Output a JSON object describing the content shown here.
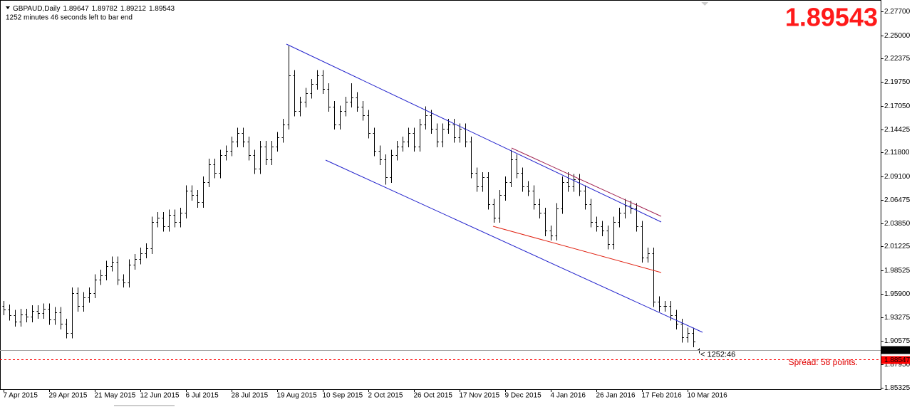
{
  "chart_data": {
    "type": "ohlc",
    "title": "GBPAUD,Daily",
    "subtitle": "1252 minutes 46 seconds left to bar end",
    "bar_timer": "< 1252:46",
    "spread_text": "Spread: 58 points.",
    "color": "#000000",
    "bid_color": "#a0a0a0",
    "ask_color": "#ff0000",
    "ask": {
      "value": 1.88547,
      "label": "1.88547"
    },
    "xlim": [
      -1.25,
      307.75
    ],
    "ylim": [
      1.8516,
      2.2898
    ],
    "xticks": [
      {
        "value": 0,
        "label": "7 Apr 2015"
      },
      {
        "value": 16,
        "label": "29 Apr 2015"
      },
      {
        "value": 32,
        "label": "21 May 2015"
      },
      {
        "value": 48,
        "label": "12 Jun 2015"
      },
      {
        "value": 64,
        "label": "6 Jul 2015"
      },
      {
        "value": 80,
        "label": "28 Jul 2015"
      },
      {
        "value": 96,
        "label": "19 Aug 2015"
      },
      {
        "value": 112,
        "label": "10 Sep 2015"
      },
      {
        "value": 128,
        "label": "2 Oct 2015"
      },
      {
        "value": 144,
        "label": "26 Oct 2015"
      },
      {
        "value": 160,
        "label": "17 Nov 2015"
      },
      {
        "value": 176,
        "label": "9 Dec 2015"
      },
      {
        "value": 192,
        "label": "4 Jan 2016"
      },
      {
        "value": 208,
        "label": "26 Jan 2016"
      },
      {
        "value": 224,
        "label": "17 Feb 2016"
      },
      {
        "value": 240,
        "label": "10 Mar 2016"
      }
    ],
    "yticks": [
      {
        "value": 2.277,
        "label": "2.27700"
      },
      {
        "value": 2.25,
        "label": "2.25000"
      },
      {
        "value": 2.22375,
        "label": "2.22375"
      },
      {
        "value": 2.1975,
        "label": "2.19750"
      },
      {
        "value": 2.1705,
        "label": "2.17050"
      },
      {
        "value": 2.14425,
        "label": "2.14425"
      },
      {
        "value": 2.118,
        "label": "2.11800"
      },
      {
        "value": 2.091,
        "label": "2.09100"
      },
      {
        "value": 2.06475,
        "label": "2.06475"
      },
      {
        "value": 2.0385,
        "label": "2.03850"
      },
      {
        "value": 2.01225,
        "label": "2.01225"
      },
      {
        "value": 1.98525,
        "label": "1.98525"
      },
      {
        "value": 1.959,
        "label": "1.95900"
      },
      {
        "value": 1.93275,
        "label": "1.93275"
      },
      {
        "value": 1.90575,
        "label": "1.90575"
      },
      {
        "value": 1.8795,
        "label": "1.87950"
      },
      {
        "value": 1.85325,
        "label": "1.85325"
      }
    ],
    "x": [
      0,
      2,
      4,
      6,
      8,
      10,
      12,
      14,
      16,
      18,
      20,
      22,
      24,
      26,
      28,
      30,
      32,
      34,
      36,
      38,
      40,
      42,
      44,
      46,
      48,
      50,
      52,
      54,
      56,
      58,
      60,
      62,
      64,
      66,
      68,
      70,
      72,
      74,
      76,
      78,
      80,
      82,
      84,
      86,
      88,
      90,
      92,
      94,
      96,
      98,
      100,
      102,
      104,
      106,
      108,
      110,
      112,
      114,
      116,
      118,
      120,
      122,
      124,
      126,
      128,
      130,
      132,
      134,
      136,
      138,
      140,
      142,
      144,
      146,
      148,
      150,
      152,
      154,
      156,
      158,
      160,
      162,
      164,
      166,
      168,
      170,
      172,
      174,
      176,
      178,
      180,
      182,
      184,
      186,
      188,
      190,
      192,
      194,
      196,
      198,
      200,
      202,
      204,
      206,
      208,
      210,
      212,
      214,
      216,
      218,
      220,
      222,
      224,
      226,
      228,
      230,
      232,
      234,
      236,
      238,
      240,
      242,
      244
    ],
    "open": [
      1.945,
      1.941,
      1.935,
      1.928,
      1.936,
      1.933,
      1.94,
      1.937,
      1.942,
      1.93,
      1.938,
      1.925,
      1.915,
      1.96,
      1.945,
      1.955,
      1.96,
      1.975,
      1.98,
      1.99,
      1.995,
      1.975,
      1.972,
      1.992,
      1.998,
      2.005,
      2.01,
      2.04,
      2.045,
      2.035,
      2.048,
      2.04,
      2.05,
      2.075,
      2.07,
      2.062,
      2.085,
      2.105,
      2.095,
      2.115,
      2.12,
      2.13,
      2.14,
      2.13,
      2.115,
      2.1,
      2.125,
      2.11,
      2.125,
      2.135,
      2.15,
      2.205,
      2.165,
      2.175,
      2.185,
      2.195,
      2.205,
      2.19,
      2.17,
      2.15,
      2.165,
      2.175,
      2.18,
      2.17,
      2.16,
      2.14,
      2.12,
      2.11,
      2.09,
      2.115,
      2.125,
      2.13,
      2.14,
      2.125,
      2.15,
      2.16,
      2.145,
      2.13,
      2.145,
      2.15,
      2.135,
      2.145,
      2.13,
      2.095,
      2.08,
      2.09,
      2.06,
      2.045,
      2.07,
      2.085,
      2.11,
      2.095,
      2.08,
      2.075,
      2.06,
      2.05,
      2.03,
      2.025,
      2.055,
      2.085,
      2.08,
      2.088,
      2.075,
      2.06,
      2.04,
      2.035,
      2.03,
      2.015,
      2.04,
      2.05,
      2.058,
      2.055,
      2.035,
      2.0,
      2.005,
      1.95,
      1.945,
      1.945,
      1.935,
      1.925,
      1.91,
      1.915,
      1.89647
    ],
    "high": [
      1.951,
      1.947,
      1.941,
      1.942,
      1.942,
      1.946,
      1.946,
      1.948,
      1.948,
      1.944,
      1.944,
      1.931,
      1.966,
      1.966,
      1.961,
      1.966,
      1.981,
      1.986,
      1.996,
      2.001,
      2.001,
      1.981,
      1.998,
      2.004,
      2.011,
      2.016,
      2.046,
      2.051,
      2.051,
      2.054,
      2.054,
      2.056,
      2.081,
      2.081,
      2.076,
      2.091,
      2.111,
      2.111,
      2.121,
      2.126,
      2.136,
      2.146,
      2.146,
      2.136,
      2.121,
      2.131,
      2.131,
      2.131,
      2.141,
      2.156,
      2.238,
      2.211,
      2.181,
      2.191,
      2.201,
      2.211,
      2.211,
      2.196,
      2.176,
      2.171,
      2.181,
      2.196,
      2.186,
      2.176,
      2.166,
      2.146,
      2.126,
      2.116,
      2.121,
      2.131,
      2.136,
      2.146,
      2.146,
      2.156,
      2.17,
      2.166,
      2.151,
      2.151,
      2.156,
      2.156,
      2.151,
      2.151,
      2.136,
      2.101,
      2.096,
      2.096,
      2.066,
      2.076,
      2.091,
      2.121,
      2.116,
      2.101,
      2.086,
      2.081,
      2.066,
      2.056,
      2.036,
      2.061,
      2.091,
      2.096,
      2.094,
      2.094,
      2.081,
      2.066,
      2.046,
      2.041,
      2.036,
      2.046,
      2.056,
      2.066,
      2.064,
      2.061,
      2.041,
      2.011,
      2.011,
      1.956,
      1.951,
      1.951,
      1.941,
      1.931,
      1.921,
      1.921,
      1.89782
    ],
    "low": [
      1.935,
      1.929,
      1.922,
      1.922,
      1.927,
      1.927,
      1.931,
      1.931,
      1.924,
      1.924,
      1.919,
      1.909,
      1.909,
      1.939,
      1.939,
      1.949,
      1.954,
      1.969,
      1.974,
      1.984,
      1.969,
      1.966,
      1.966,
      1.986,
      1.992,
      1.999,
      2.004,
      2.034,
      2.029,
      2.029,
      2.034,
      2.034,
      2.044,
      2.064,
      2.056,
      2.056,
      2.079,
      2.089,
      2.089,
      2.109,
      2.114,
      2.124,
      2.124,
      2.109,
      2.094,
      2.094,
      2.104,
      2.104,
      2.119,
      2.129,
      2.144,
      2.159,
      2.159,
      2.169,
      2.179,
      2.189,
      2.184,
      2.164,
      2.144,
      2.144,
      2.159,
      2.169,
      2.164,
      2.154,
      2.134,
      2.114,
      2.104,
      2.082,
      2.084,
      2.109,
      2.119,
      2.124,
      2.119,
      2.119,
      2.144,
      2.139,
      2.124,
      2.124,
      2.139,
      2.129,
      2.129,
      2.124,
      2.089,
      2.074,
      2.074,
      2.054,
      2.039,
      2.039,
      2.064,
      2.079,
      2.089,
      2.074,
      2.069,
      2.054,
      2.044,
      2.024,
      2.019,
      2.019,
      2.049,
      2.074,
      2.074,
      2.069,
      2.054,
      2.034,
      2.029,
      2.024,
      2.009,
      2.009,
      2.034,
      2.044,
      2.049,
      2.029,
      1.994,
      1.994,
      1.944,
      1.939,
      1.939,
      1.929,
      1.919,
      1.904,
      1.904,
      1.899,
      1.89212
    ],
    "close": [
      1.941,
      1.935,
      1.928,
      1.936,
      1.933,
      1.94,
      1.937,
      1.942,
      1.93,
      1.938,
      1.925,
      1.915,
      1.96,
      1.945,
      1.955,
      1.96,
      1.975,
      1.98,
      1.99,
      1.995,
      1.975,
      1.972,
      1.992,
      1.998,
      2.005,
      2.01,
      2.04,
      2.045,
      2.035,
      2.048,
      2.04,
      2.05,
      2.075,
      2.07,
      2.062,
      2.085,
      2.105,
      2.095,
      2.115,
      2.12,
      2.13,
      2.14,
      2.13,
      2.115,
      2.1,
      2.125,
      2.11,
      2.125,
      2.135,
      2.15,
      2.205,
      2.165,
      2.175,
      2.185,
      2.195,
      2.205,
      2.19,
      2.17,
      2.15,
      2.165,
      2.175,
      2.18,
      2.17,
      2.16,
      2.14,
      2.12,
      2.11,
      2.09,
      2.115,
      2.125,
      2.13,
      2.14,
      2.125,
      2.15,
      2.16,
      2.145,
      2.13,
      2.145,
      2.15,
      2.135,
      2.145,
      2.13,
      2.095,
      2.08,
      2.09,
      2.06,
      2.045,
      2.07,
      2.085,
      2.11,
      2.095,
      2.08,
      2.075,
      2.06,
      2.05,
      2.03,
      2.025,
      2.055,
      2.085,
      2.08,
      2.088,
      2.075,
      2.06,
      2.04,
      2.035,
      2.03,
      2.015,
      2.04,
      2.05,
      2.058,
      2.055,
      2.035,
      2.0,
      2.005,
      1.95,
      1.945,
      1.945,
      1.935,
      1.925,
      1.91,
      1.915,
      1.905,
      1.89543
    ]
  }
}
